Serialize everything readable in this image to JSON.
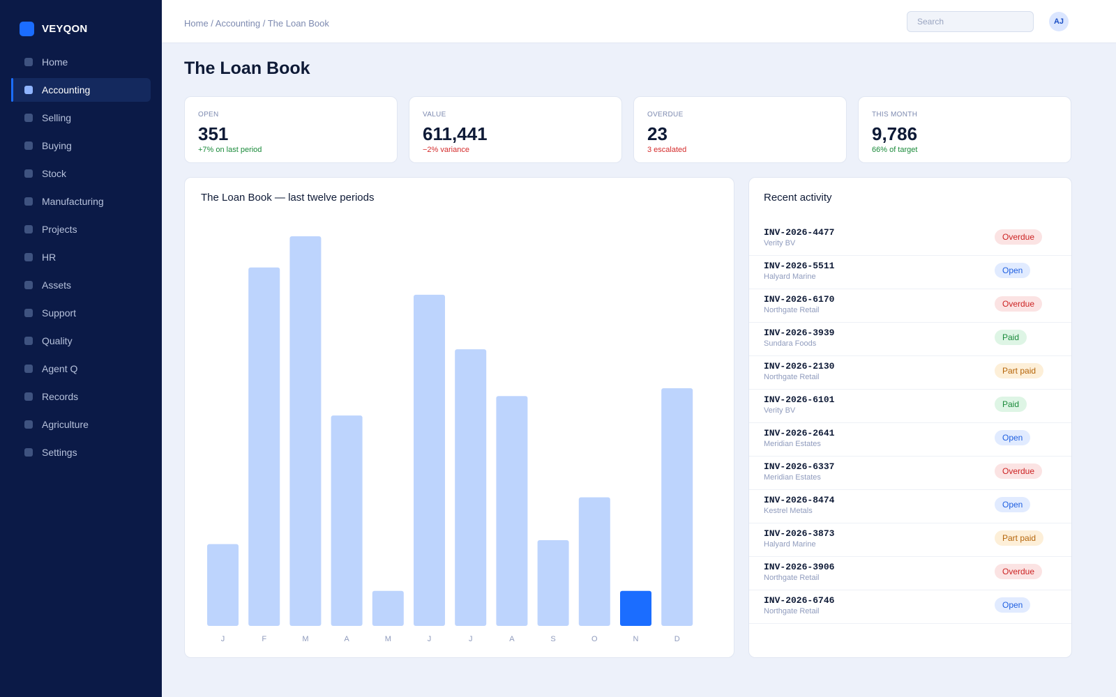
{
  "app": {
    "name": "VEYQON"
  },
  "sidebar": {
    "items": [
      {
        "label": "Home",
        "active": false
      },
      {
        "label": "Accounting",
        "active": true
      },
      {
        "label": "Selling",
        "active": false
      },
      {
        "label": "Buying",
        "active": false
      },
      {
        "label": "Stock",
        "active": false
      },
      {
        "label": "Manufacturing",
        "active": false
      },
      {
        "label": "Projects",
        "active": false
      },
      {
        "label": "HR",
        "active": false
      },
      {
        "label": "Assets",
        "active": false
      },
      {
        "label": "Support",
        "active": false
      },
      {
        "label": "Quality",
        "active": false
      },
      {
        "label": "Agent Q",
        "active": false
      },
      {
        "label": "Records",
        "active": false
      },
      {
        "label": "Agriculture",
        "active": false
      },
      {
        "label": "Settings",
        "active": false
      }
    ]
  },
  "header": {
    "breadcrumb": "Home / Accounting / The Loan Book",
    "search_placeholder": "Search",
    "avatar_initials": "AJ"
  },
  "page": {
    "title": "The Loan Book"
  },
  "kpis": [
    {
      "label": "OPEN",
      "value": "351",
      "delta": "+7% on last period",
      "tone": "positive"
    },
    {
      "label": "VALUE",
      "value": "611,441",
      "delta": "−2% variance",
      "tone": "negative"
    },
    {
      "label": "OVERDUE",
      "value": "23",
      "delta": "3 escalated",
      "tone": "negative"
    },
    {
      "label": "THIS MONTH",
      "value": "9,786",
      "delta": "66% of target",
      "tone": "positive"
    }
  ],
  "chart_card": {
    "title": "The Loan Book — last twelve periods"
  },
  "chart_data": {
    "type": "bar",
    "categories": [
      "J",
      "F",
      "M",
      "A",
      "M",
      "J",
      "J",
      "A",
      "S",
      "O",
      "N",
      "D"
    ],
    "values": [
      21,
      92,
      100,
      54,
      9,
      85,
      71,
      59,
      22,
      33,
      9,
      61
    ],
    "ylim": [
      0,
      100
    ],
    "highlight_index": 10,
    "grid": false,
    "bar_color": "#bdd4fd",
    "highlight_color": "#1b6dff"
  },
  "activity": {
    "title": "Recent activity",
    "rows": [
      {
        "id": "INV-2026-4477",
        "party": "Verity BV",
        "status": "Overdue",
        "kind": "overdue"
      },
      {
        "id": "INV-2026-5511",
        "party": "Halyard Marine",
        "status": "Open",
        "kind": "open"
      },
      {
        "id": "INV-2026-6170",
        "party": "Northgate Retail",
        "status": "Overdue",
        "kind": "overdue"
      },
      {
        "id": "INV-2026-3939",
        "party": "Sundara Foods",
        "status": "Paid",
        "kind": "paid"
      },
      {
        "id": "INV-2026-2130",
        "party": "Northgate Retail",
        "status": "Part paid",
        "kind": "partpaid"
      },
      {
        "id": "INV-2026-6101",
        "party": "Verity BV",
        "status": "Paid",
        "kind": "paid"
      },
      {
        "id": "INV-2026-2641",
        "party": "Meridian Estates",
        "status": "Open",
        "kind": "open"
      },
      {
        "id": "INV-2026-6337",
        "party": "Meridian Estates",
        "status": "Overdue",
        "kind": "overdue"
      },
      {
        "id": "INV-2026-8474",
        "party": "Kestrel Metals",
        "status": "Open",
        "kind": "open"
      },
      {
        "id": "INV-2026-3873",
        "party": "Halyard Marine",
        "status": "Part paid",
        "kind": "partpaid"
      },
      {
        "id": "INV-2026-3906",
        "party": "Northgate Retail",
        "status": "Overdue",
        "kind": "overdue"
      },
      {
        "id": "INV-2026-6746",
        "party": "Northgate Retail",
        "status": "Open",
        "kind": "open"
      }
    ]
  }
}
